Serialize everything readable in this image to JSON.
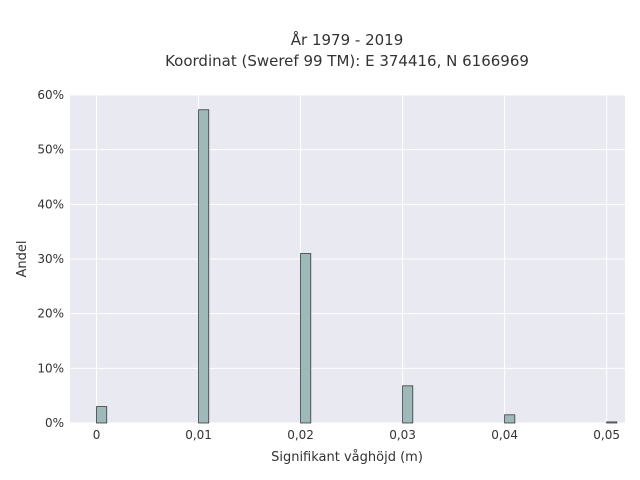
{
  "chart_data": {
    "type": "bar",
    "title": "År 1979 - 2019",
    "subtitle": "Koordinat (Sweref 99 TM): E 374416, N 6166969",
    "xlabel": "Signifikant våghöjd (m)",
    "ylabel": "Andel",
    "x_ticks": [
      {
        "value": 0,
        "label": "0"
      },
      {
        "value": 0.01,
        "label": "0,01"
      },
      {
        "value": 0.02,
        "label": "0,02"
      },
      {
        "value": 0.03,
        "label": "0,03"
      },
      {
        "value": 0.04,
        "label": "0,04"
      },
      {
        "value": 0.05,
        "label": "0,05"
      }
    ],
    "y_ticks": [
      {
        "value": 0,
        "label": "0%"
      },
      {
        "value": 10,
        "label": "10%"
      },
      {
        "value": 20,
        "label": "20%"
      },
      {
        "value": 30,
        "label": "30%"
      },
      {
        "value": 40,
        "label": "40%"
      },
      {
        "value": 50,
        "label": "50%"
      },
      {
        "value": 60,
        "label": "60%"
      }
    ],
    "xlim": [
      -0.0026,
      0.0518
    ],
    "ylim": [
      0,
      60
    ],
    "bar_width": 0.001,
    "x": [
      0,
      0.01,
      0.02,
      0.03,
      0.04,
      0.05
    ],
    "values": [
      3.0,
      57.3,
      31.0,
      6.8,
      1.5,
      0.2
    ],
    "grid": true,
    "colors": {
      "background": "#e9e9f1",
      "grid": "#ffffff",
      "bar_fill": "#9fb8b8",
      "bar_stroke": "#3a3a3a"
    }
  }
}
